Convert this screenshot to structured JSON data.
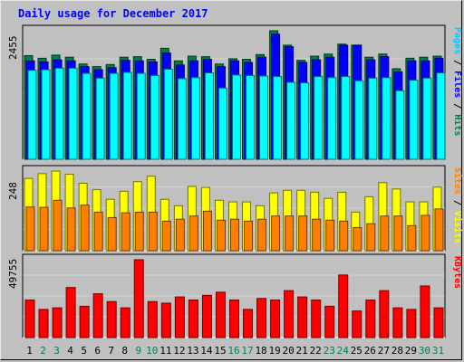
{
  "chart_data": {
    "title": "Daily usage for December 2017",
    "days": [
      "1",
      "2",
      "3",
      "4",
      "5",
      "6",
      "7",
      "8",
      "9",
      "10",
      "11",
      "12",
      "13",
      "14",
      "15",
      "16",
      "17",
      "18",
      "19",
      "20",
      "21",
      "22",
      "23",
      "24",
      "25",
      "26",
      "27",
      "28",
      "29",
      "30",
      "31"
    ],
    "weekend_days": [
      "2",
      "3",
      "9",
      "10",
      "16",
      "17",
      "23",
      "24",
      "30",
      "31"
    ],
    "panels": [
      {
        "type": "bar",
        "ymax_label": "2455",
        "ymax": 2455,
        "side_labels": [
          "Pages",
          "Files",
          "Hits"
        ],
        "series": [
          {
            "name": "Hits",
            "color": "#008040",
            "values": [
              1980,
              1930,
              1990,
              1950,
              1820,
              1770,
              1810,
              1950,
              1960,
              1910,
              2120,
              1880,
              1970,
              1960,
              1820,
              1920,
              1910,
              2000,
              2455,
              2180,
              1890,
              1970,
              2010,
              2200,
              2180,
              1950,
              2010,
              1730,
              1930,
              1950,
              1970
            ]
          },
          {
            "name": "Files",
            "color": "#0000ff",
            "values": [
              1880,
              1860,
              1900,
              1880,
              1770,
              1710,
              1750,
              1890,
              1880,
              1860,
              2030,
              1800,
              1880,
              1910,
              1770,
              1880,
              1850,
              1950,
              2390,
              2150,
              1850,
              1900,
              1950,
              2180,
              2180,
              1900,
              1960,
              1670,
              1880,
              1880,
              1930
            ]
          },
          {
            "name": "Pages",
            "color": "#00ffff",
            "values": [
              1700,
              1710,
              1740,
              1740,
              1640,
              1550,
              1640,
              1660,
              1640,
              1600,
              1720,
              1540,
              1560,
              1650,
              1360,
              1610,
              1600,
              1590,
              1580,
              1470,
              1460,
              1580,
              1560,
              1580,
              1500,
              1550,
              1560,
              1310,
              1510,
              1550,
              1650
            ]
          }
        ]
      },
      {
        "type": "bar",
        "ymax_label": "248",
        "ymax": 248,
        "side_labels": [
          "Sites",
          "Visits"
        ],
        "series": [
          {
            "name": "Visits",
            "color": "#ffff00",
            "values": [
              225,
              240,
              248,
              238,
              210,
              190,
              160,
              185,
              215,
              232,
              160,
              140,
              200,
              197,
              157,
              152,
              152,
              140,
              180,
              188,
              188,
              182,
              163,
              182,
              120,
              168,
              212,
              192,
              152,
              152,
              198
            ]
          },
          {
            "name": "Sites",
            "color": "#ff8000",
            "values": [
              136,
              135,
              157,
              133,
              142,
              120,
              103,
              118,
              120,
              120,
              92,
              98,
              108,
              123,
              95,
              98,
              92,
              98,
              108,
              108,
              108,
              98,
              95,
              92,
              72,
              84,
              108,
              108,
              78,
              110,
              130
            ]
          }
        ]
      },
      {
        "type": "bar",
        "ymax_label": "49755",
        "ymax": 49755,
        "side_labels": [
          "KBytes"
        ],
        "series": [
          {
            "name": "KBytes",
            "color": "#ff0000",
            "values": [
              24000,
              18000,
              19000,
              32000,
              20000,
              28000,
              23000,
              19000,
              49755,
              23000,
              22000,
              26000,
              24000,
              27000,
              29000,
              24000,
              18000,
              25000,
              24000,
              30000,
              26000,
              24000,
              20000,
              40000,
              17000,
              24000,
              30000,
              19000,
              18000,
              33000,
              19000
            ]
          }
        ]
      }
    ]
  },
  "colors": {
    "title": "#0000ff",
    "weekday_label": "#000000",
    "weekend_label": "#00805c",
    "plot_background": "#c0c0c0",
    "grid": "#ffffff"
  }
}
